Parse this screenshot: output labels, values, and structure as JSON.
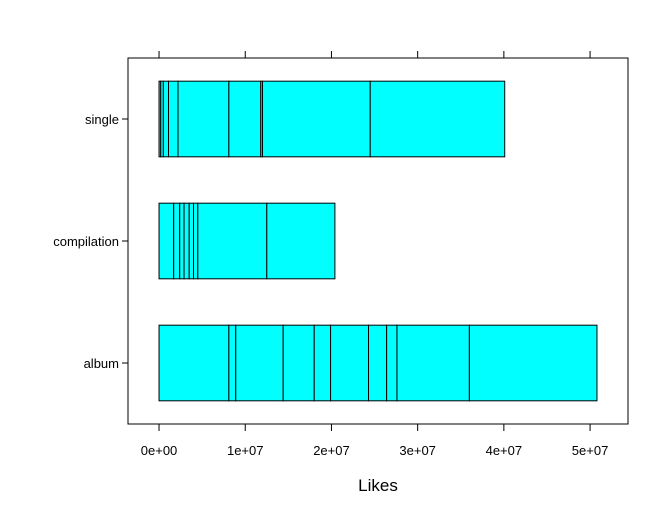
{
  "chart_data": {
    "type": "bar",
    "orientation": "horizontal",
    "stacked": true,
    "bar_color": "#00FFFF",
    "edge_color": "#000000",
    "xlabel": "Likes",
    "ylabel": "",
    "title": "",
    "xlim": [
      -3600000,
      54400000
    ],
    "x_ticks": [
      0,
      10000000,
      20000000,
      30000000,
      40000000,
      50000000
    ],
    "x_tick_labels": [
      "0e+00",
      "1e+07",
      "2e+07",
      "3e+07",
      "4e+07",
      "5e+07"
    ],
    "categories": [
      "album",
      "compilation",
      "single"
    ],
    "segment_boundaries": {
      "album": [
        0,
        8100000,
        8900000,
        14400000,
        18000000,
        19900000,
        24300000,
        26400000,
        27600000,
        36000000,
        50800000
      ],
      "compilation": [
        0,
        1700000,
        2400000,
        2900000,
        3500000,
        4000000,
        4500000,
        12500000,
        20400000
      ],
      "single": [
        0,
        200000,
        500000,
        1100000,
        2200000,
        8100000,
        11800000,
        12000000,
        24500000,
        40100000
      ]
    },
    "totals": {
      "album": 50800000,
      "compilation": 20400000,
      "single": 40100000
    },
    "grid": false,
    "legend": "none"
  }
}
